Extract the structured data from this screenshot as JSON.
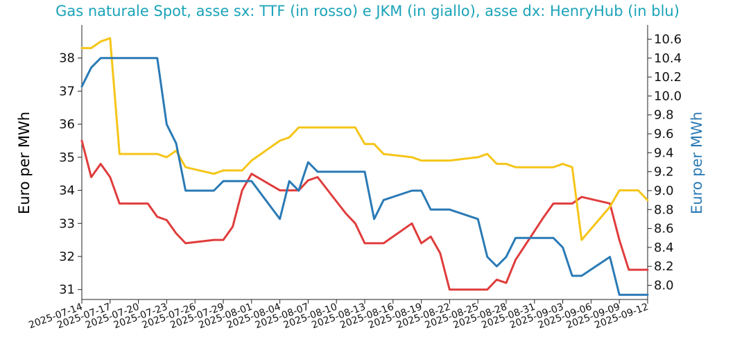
{
  "chart_data": {
    "type": "line",
    "title": "Gas naturale Spot, asse sx: TTF (in rosso) e JKM (in giallo), asse dx: HenryHub (in blu)",
    "ylabel_left": "Euro per MWh",
    "ylabel_right": "Euro per MWh",
    "ylim_left": [
      30.7,
      39.0
    ],
    "ylim_right": [
      7.85,
      10.75
    ],
    "left_ticks": [
      31,
      32,
      33,
      34,
      35,
      36,
      37,
      38
    ],
    "right_ticks": [
      8.0,
      8.2,
      8.4,
      8.6,
      8.8,
      9.0,
      9.2,
      9.4,
      9.6,
      9.8,
      10.0,
      10.2,
      10.4,
      10.6
    ],
    "right_tick_labels": [
      "8.0",
      "8.2",
      "8.4",
      "8.6",
      "8.8",
      "9.0",
      "9.2",
      "9.4",
      "9.6",
      "9.8",
      "10.0",
      "10.2",
      "10.4",
      "10.6"
    ],
    "x_ticks": [
      "2025-07-14",
      "2025-07-17",
      "2025-07-20",
      "2025-07-23",
      "2025-07-26",
      "2025-07-29",
      "2025-08-01",
      "2025-08-04",
      "2025-08-07",
      "2025-08-10",
      "2025-08-13",
      "2025-08-16",
      "2025-08-19",
      "2025-08-22",
      "2025-08-25",
      "2025-08-28",
      "2025-08-31",
      "2025-09-03",
      "2025-09-06",
      "2025-09-09",
      "2025-09-12"
    ],
    "grid": false,
    "title_color": "#1aa3b8",
    "right_axis_color": "#2a7ab5",
    "series": [
      {
        "name": "TTF",
        "axis": "left",
        "color": "#e03c3c",
        "x": [
          "2025-07-14",
          "2025-07-15",
          "2025-07-16",
          "2025-07-17",
          "2025-07-18",
          "2025-07-21",
          "2025-07-22",
          "2025-07-23",
          "2025-07-24",
          "2025-07-25",
          "2025-07-28",
          "2025-07-29",
          "2025-07-30",
          "2025-07-31",
          "2025-08-01",
          "2025-08-04",
          "2025-08-05",
          "2025-08-06",
          "2025-08-07",
          "2025-08-08",
          "2025-08-11",
          "2025-08-12",
          "2025-08-13",
          "2025-08-14",
          "2025-08-15",
          "2025-08-18",
          "2025-08-19",
          "2025-08-20",
          "2025-08-21",
          "2025-08-22",
          "2025-08-25",
          "2025-08-26",
          "2025-08-27",
          "2025-08-28",
          "2025-08-29",
          "2025-09-01",
          "2025-09-02",
          "2025-09-03",
          "2025-09-04",
          "2025-09-05",
          "2025-09-08",
          "2025-09-09",
          "2025-09-10",
          "2025-09-11",
          "2025-09-12"
        ],
        "values": [
          35.5,
          34.4,
          34.8,
          34.4,
          33.6,
          33.6,
          33.2,
          33.1,
          32.7,
          32.4,
          32.5,
          32.5,
          32.9,
          34.0,
          34.5,
          34.0,
          34.0,
          34.0,
          34.3,
          34.4,
          33.3,
          33.0,
          32.4,
          32.4,
          32.4,
          33.0,
          32.4,
          32.6,
          32.1,
          31.0,
          31.0,
          31.0,
          31.3,
          31.2,
          31.9,
          33.2,
          33.6,
          33.6,
          33.6,
          33.8,
          33.6,
          32.5,
          31.6,
          31.6,
          31.6
        ]
      },
      {
        "name": "JKM",
        "axis": "left",
        "color": "#f5c518",
        "x": [
          "2025-07-14",
          "2025-07-15",
          "2025-07-16",
          "2025-07-17",
          "2025-07-18",
          "2025-07-21",
          "2025-07-22",
          "2025-07-23",
          "2025-07-24",
          "2025-07-25",
          "2025-07-28",
          "2025-07-29",
          "2025-07-30",
          "2025-07-31",
          "2025-08-01",
          "2025-08-04",
          "2025-08-05",
          "2025-08-06",
          "2025-08-07",
          "2025-08-08",
          "2025-08-11",
          "2025-08-12",
          "2025-08-13",
          "2025-08-14",
          "2025-08-15",
          "2025-08-18",
          "2025-08-19",
          "2025-08-20",
          "2025-08-21",
          "2025-08-22",
          "2025-08-25",
          "2025-08-26",
          "2025-08-27",
          "2025-08-28",
          "2025-08-29",
          "2025-09-01",
          "2025-09-02",
          "2025-09-03",
          "2025-09-04",
          "2025-09-05",
          "2025-09-08",
          "2025-09-09",
          "2025-09-10",
          "2025-09-11",
          "2025-09-12"
        ],
        "values": [
          38.3,
          38.3,
          38.5,
          38.6,
          35.1,
          35.1,
          35.1,
          35.0,
          35.2,
          34.7,
          34.5,
          34.6,
          34.6,
          34.6,
          34.9,
          35.5,
          35.6,
          35.9,
          35.9,
          35.9,
          35.9,
          35.9,
          35.4,
          35.4,
          35.1,
          35.0,
          34.9,
          34.9,
          34.9,
          34.9,
          35.0,
          35.1,
          34.8,
          34.8,
          34.7,
          34.7,
          34.7,
          34.8,
          34.7,
          32.5,
          33.5,
          34.0,
          34.0,
          34.0,
          33.7
        ]
      },
      {
        "name": "HenryHub",
        "axis": "right",
        "color": "#2a7ab5",
        "x": [
          "2025-07-14",
          "2025-07-15",
          "2025-07-16",
          "2025-07-17",
          "2025-07-18",
          "2025-07-21",
          "2025-07-22",
          "2025-07-23",
          "2025-07-24",
          "2025-07-25",
          "2025-07-28",
          "2025-07-29",
          "2025-07-30",
          "2025-07-31",
          "2025-08-01",
          "2025-08-04",
          "2025-08-05",
          "2025-08-06",
          "2025-08-07",
          "2025-08-08",
          "2025-08-11",
          "2025-08-12",
          "2025-08-13",
          "2025-08-14",
          "2025-08-15",
          "2025-08-18",
          "2025-08-19",
          "2025-08-20",
          "2025-08-21",
          "2025-08-22",
          "2025-08-25",
          "2025-08-26",
          "2025-08-27",
          "2025-08-28",
          "2025-08-29",
          "2025-09-01",
          "2025-09-02",
          "2025-09-03",
          "2025-09-04",
          "2025-09-05",
          "2025-09-08",
          "2025-09-09",
          "2025-09-10",
          "2025-09-11",
          "2025-09-12"
        ],
        "values": [
          10.1,
          10.3,
          10.4,
          10.4,
          10.4,
          10.4,
          10.4,
          9.7,
          9.5,
          9.0,
          9.0,
          9.1,
          9.1,
          9.1,
          9.1,
          8.7,
          9.1,
          9.0,
          9.3,
          9.2,
          9.2,
          9.2,
          9.2,
          8.7,
          8.9,
          9.0,
          9.0,
          8.8,
          8.8,
          8.8,
          8.7,
          8.3,
          8.2,
          8.3,
          8.5,
          8.5,
          8.5,
          8.4,
          8.1,
          8.1,
          8.3,
          7.9,
          7.9,
          7.9,
          7.9
        ]
      }
    ]
  }
}
